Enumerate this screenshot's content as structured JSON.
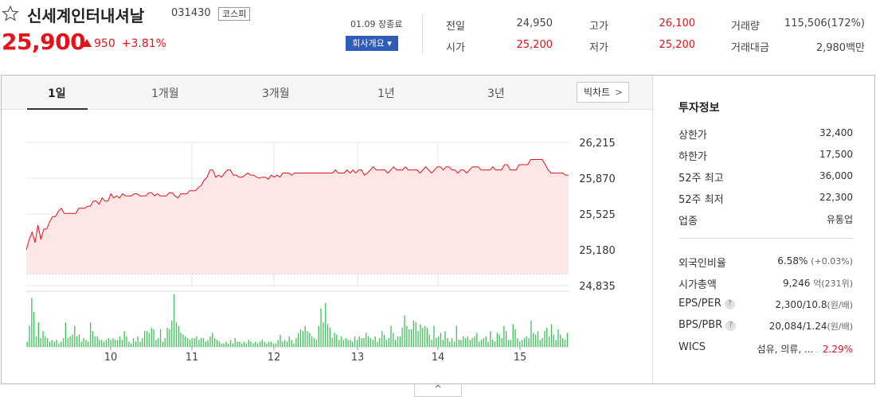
{
  "stock": {
    "name": "신세계인터내셔날",
    "code": "031430",
    "market": "코스피",
    "price": "25,900",
    "change": "950",
    "change_pct": "+3.81%",
    "date_status": "01.09 장종료",
    "company_button": "회사개요",
    "quotes": [
      {
        "label": "전일",
        "value": "24,950",
        "color": "normal"
      },
      {
        "label": "고가",
        "value": "26,100",
        "color": "red"
      },
      {
        "label": "거래량",
        "value": "115,506(172%)",
        "color": "normal"
      },
      {
        "label": "시가",
        "value": "25,200",
        "color": "red"
      },
      {
        "label": "저가",
        "value": "25,200",
        "color": "red"
      },
      {
        "label": "거래대금",
        "value": "2,980백만",
        "color": "normal"
      }
    ]
  },
  "tabs": [
    "1일",
    "1개월",
    "3개월",
    "1년",
    "3년"
  ],
  "active_tab": "1일",
  "big_chart_button": "빅차트",
  "collapse_icon": "chevron-up-icon",
  "panel": {
    "title": "투자정보",
    "rows": [
      {
        "label": "상한가",
        "value": "32,400",
        "color": "red"
      },
      {
        "label": "하한가",
        "value": "17,500",
        "color": "blue"
      },
      {
        "label": "52주 최고",
        "value": "36,000",
        "color": "normal"
      },
      {
        "label": "52주 최저",
        "value": "22,300",
        "color": "normal"
      },
      {
        "label": "업종",
        "value": "유통업",
        "color": "normal"
      }
    ],
    "rows2": [
      {
        "label": "외국인비율",
        "value": "6.58%",
        "sub": "(+0.03%)"
      },
      {
        "label": "시가총액",
        "value": "9,246",
        "sub": "억(231위)"
      },
      {
        "label": "EPS/PER",
        "value": "2,300/10.8",
        "sub": "(원/배)",
        "help": true
      },
      {
        "label": "BPS/PBR",
        "value": "20,084/1.24",
        "sub": "(원/배)",
        "help": true
      },
      {
        "label": "WICS",
        "value": "섬유, 의류, ...",
        "extra": "2.29%"
      }
    ]
  },
  "colors": {
    "accent_red": "#e5121a",
    "accent_blue": "#1a5fd8",
    "button_blue": "#2f5cb8",
    "volume_green": "#3ec15a"
  },
  "chart_data": {
    "type": "line",
    "y_ticks": [
      "26,215",
      "25,870",
      "25,525",
      "25,180",
      "24,835"
    ],
    "ylim": [
      24835,
      26215
    ],
    "x_ticks": [
      "10",
      "11",
      "12",
      "13",
      "14",
      "15"
    ],
    "prev_close": 24950,
    "price": [
      25180,
      25280,
      25350,
      25250,
      25420,
      25280,
      25380,
      25380,
      25450,
      25500,
      25500,
      25550,
      25580,
      25530,
      25530,
      25530,
      25530,
      25530,
      25580,
      25580,
      25580,
      25600,
      25600,
      25650,
      25650,
      25620,
      25680,
      25650,
      25650,
      25720,
      25680,
      25700,
      25680,
      25720,
      25700,
      25700,
      25700,
      25720,
      25720,
      25700,
      25700,
      25700,
      25730,
      25730,
      25700,
      25720,
      25700,
      25700,
      25700,
      25730,
      25730,
      25700,
      25680,
      25720,
      25720,
      25720,
      25750,
      25750,
      25750,
      25780,
      25800,
      25850,
      25880,
      25950,
      25950,
      25880,
      25900,
      25880,
      25920,
      25950,
      25950,
      25900,
      25900,
      25880,
      25880,
      25900,
      25920,
      25900,
      25900,
      25880,
      25870,
      25880,
      25880,
      25860,
      25900,
      25880,
      25900,
      25880,
      25920,
      25920,
      25920,
      25900,
      25920,
      25920,
      25920,
      25920,
      25920,
      25920,
      25920,
      25920,
      25920,
      25920,
      25920,
      25920,
      25920,
      25920,
      25950,
      25920,
      25920,
      25920,
      25950,
      25920,
      25950,
      25920,
      25950,
      25950,
      25900,
      25920,
      25950,
      25980,
      25950,
      25950,
      25950,
      25950,
      25920,
      25950,
      25980,
      25950,
      25950,
      25950,
      25980,
      25950,
      25950,
      25950,
      25950,
      25920,
      25950,
      25980,
      25950,
      25920,
      25950,
      25980,
      25980,
      25950,
      25980,
      25980,
      25950,
      25950,
      25920,
      25950,
      25950,
      25920,
      25950,
      25980,
      25980,
      25980,
      25950,
      25950,
      25950,
      25950,
      25980,
      25950,
      25950,
      25950,
      26000,
      26000,
      25950,
      25950,
      25950,
      26000,
      26000,
      26000,
      26000,
      26050,
      26050,
      26050,
      26050,
      26050,
      26000,
      25950,
      25920,
      25920,
      25920,
      25920,
      25920,
      25900,
      25900
    ],
    "volume": [
      3,
      12,
      28,
      20,
      6,
      14,
      5,
      9,
      6,
      5,
      3,
      4,
      3,
      4,
      2,
      3,
      5,
      14,
      5,
      6,
      7,
      12,
      6,
      7,
      3,
      5,
      4,
      3,
      14,
      9,
      6,
      6,
      4,
      4,
      3,
      4,
      5,
      4,
      5,
      4,
      4,
      6,
      4,
      9,
      6,
      3,
      2,
      5,
      3,
      6,
      3,
      5,
      9,
      9,
      8,
      11,
      10,
      4,
      5,
      10,
      3,
      5,
      11,
      10,
      15,
      30,
      14,
      12,
      8,
      7,
      6,
      5,
      4,
      5,
      5,
      6,
      4,
      5,
      5,
      3,
      4,
      6,
      8,
      5,
      4,
      3,
      2,
      2,
      3,
      2,
      4,
      2,
      5,
      3,
      3,
      2,
      3,
      2,
      4,
      3,
      2,
      3,
      2,
      3,
      4,
      3,
      2,
      3,
      3,
      2,
      2,
      4,
      7,
      3,
      4,
      3,
      6,
      4,
      2,
      5,
      8,
      10,
      9,
      12,
      9,
      8,
      6,
      5,
      4,
      12,
      22,
      14,
      25,
      13,
      11,
      5,
      8,
      7,
      4,
      6,
      4,
      5,
      4,
      4,
      3,
      6,
      4,
      6,
      5,
      5,
      8,
      6,
      5,
      4,
      6,
      3,
      5,
      9,
      7,
      4,
      5,
      12,
      8,
      4,
      6,
      6,
      11,
      18,
      12,
      10,
      10,
      15,
      14,
      9,
      13,
      11,
      12,
      11,
      7,
      4,
      12,
      5,
      6,
      8,
      4,
      9,
      5,
      3,
      5,
      3,
      12,
      4,
      4,
      6,
      5,
      6,
      4,
      5,
      6,
      8,
      3,
      4,
      5,
      6,
      3,
      9,
      4,
      3,
      8,
      7,
      5,
      12,
      9,
      4,
      4,
      13,
      10,
      5,
      3,
      4,
      5,
      6,
      5,
      15,
      8,
      7,
      9,
      4,
      5,
      9,
      11,
      6,
      13,
      7,
      4,
      10,
      7,
      5,
      4,
      8
    ]
  }
}
